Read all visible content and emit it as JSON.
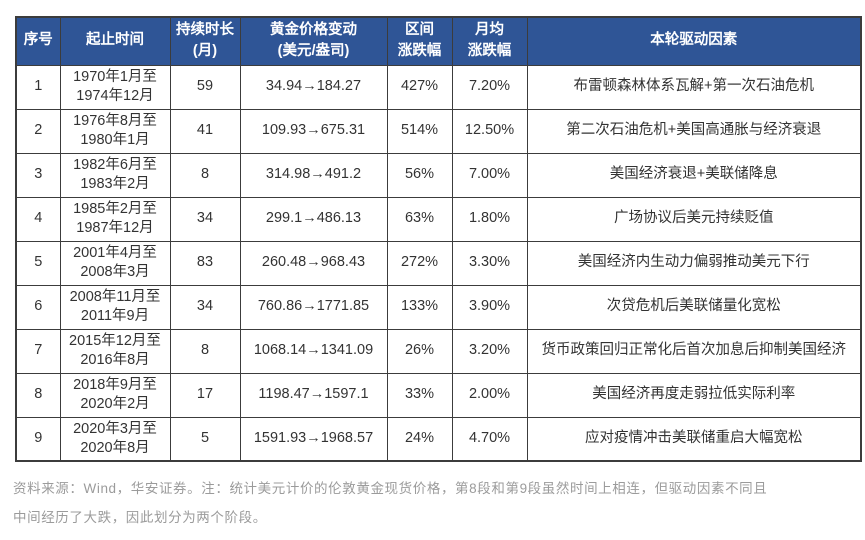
{
  "chart_data": {
    "type": "table",
    "columns": [
      {
        "id": "no",
        "label": "序号"
      },
      {
        "id": "period",
        "label": "起止时间"
      },
      {
        "id": "duration",
        "label": "持续时长\n(月)"
      },
      {
        "id": "price_change",
        "label": "黄金价格变动\n(美元/盎司)"
      },
      {
        "id": "range_change",
        "label": "区间\n涨跌幅"
      },
      {
        "id": "monthly_change",
        "label": "月均\n涨跌幅"
      },
      {
        "id": "driver",
        "label": "本轮驱动因素"
      }
    ],
    "rows": [
      {
        "no": "1",
        "period": "1970年1月至\n1974年12月",
        "duration": "59",
        "price_change": "34.94→184.27",
        "range_change": "427%",
        "monthly_change": "7.20%",
        "driver": "布雷顿森林体系瓦解+第一次石油危机"
      },
      {
        "no": "2",
        "period": "1976年8月至\n1980年1月",
        "duration": "41",
        "price_change": "109.93→675.31",
        "range_change": "514%",
        "monthly_change": "12.50%",
        "driver": "第二次石油危机+美国高通胀与经济衰退"
      },
      {
        "no": "3",
        "period": "1982年6月至\n1983年2月",
        "duration": "8",
        "price_change": "314.98→491.2",
        "range_change": "56%",
        "monthly_change": "7.00%",
        "driver": "美国经济衰退+美联储降息"
      },
      {
        "no": "4",
        "period": "1985年2月至\n1987年12月",
        "duration": "34",
        "price_change": "299.1→486.13",
        "range_change": "63%",
        "monthly_change": "1.80%",
        "driver": "广场协议后美元持续贬值"
      },
      {
        "no": "5",
        "period": "2001年4月至\n2008年3月",
        "duration": "83",
        "price_change": "260.48→968.43",
        "range_change": "272%",
        "monthly_change": "3.30%",
        "driver": "美国经济内生动力偏弱推动美元下行"
      },
      {
        "no": "6",
        "period": "2008年11月至\n2011年9月",
        "duration": "34",
        "price_change": "760.86→1771.85",
        "range_change": "133%",
        "monthly_change": "3.90%",
        "driver": "次贷危机后美联储量化宽松"
      },
      {
        "no": "7",
        "period": "2015年12月至\n2016年8月",
        "duration": "8",
        "price_change": "1068.14→1341.09",
        "range_change": "26%",
        "monthly_change": "3.20%",
        "driver": "货币政策回归正常化后首次加息后抑制美国经济"
      },
      {
        "no": "8",
        "period": "2018年9月至\n2020年2月",
        "duration": "17",
        "price_change": "1198.47→1597.1",
        "range_change": "33%",
        "monthly_change": "2.00%",
        "driver": "美国经济再度走弱拉低实际利率"
      },
      {
        "no": "9",
        "period": "2020年3月至\n2020年8月",
        "duration": "5",
        "price_change": "1591.93→1968.57",
        "range_change": "24%",
        "monthly_change": "4.70%",
        "driver": "应对疫情冲击美联储重启大幅宽松"
      }
    ]
  },
  "footnote": {
    "line1": "资料来源：Wind，华安证券。注：统计美元计价的伦敦黄金现货价格，第8段和第9段虽然时间上相连，但驱动因素不同且",
    "line2": "中间经历了大跌，因此划分为两个阶段。"
  },
  "colors": {
    "header_bg": "#2F5596",
    "header_text": "#FFFFFF",
    "border": "#3C3C3C",
    "cell_text": "#333333",
    "footnote_text": "#9B9B9B"
  }
}
